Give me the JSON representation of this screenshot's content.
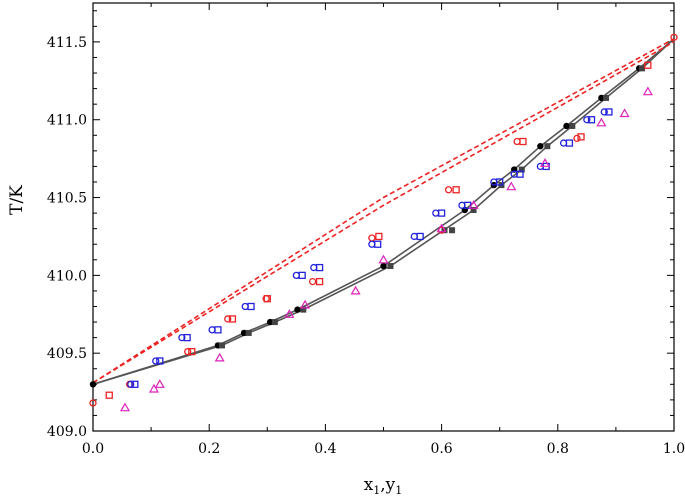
{
  "chart_data": {
    "type": "scatter",
    "xlabel": "x",
    "xlabel_sub1": "1",
    "xlabel_sep": ",y",
    "xlabel_sub2": "1",
    "ylabel": "T/K",
    "xlim": [
      0.0,
      1.0
    ],
    "ylim": [
      409.0,
      411.75
    ],
    "xticks": [
      "0.0",
      "0.2",
      "0.4",
      "0.6",
      "0.8",
      "1.0"
    ],
    "yticks": [
      "409.0",
      "409.5",
      "410.0",
      "410.5",
      "411.0",
      "411.5"
    ],
    "grid": false,
    "legend": "none",
    "series": [
      {
        "kind": "line",
        "color": "#555555",
        "dash": "",
        "x": [
          0.0,
          0.215,
          0.26,
          0.305,
          0.352,
          0.5,
          0.64,
          0.69,
          0.725,
          0.77,
          0.815,
          0.875,
          0.94,
          1.0
        ],
        "y": [
          409.3,
          409.55,
          409.63,
          409.7,
          409.78,
          410.06,
          410.42,
          410.58,
          410.68,
          410.83,
          410.96,
          411.14,
          411.33,
          411.52
        ]
      },
      {
        "kind": "line",
        "color": "#555555",
        "dash": "",
        "x": [
          0.0,
          0.222,
          0.268,
          0.313,
          0.362,
          0.512,
          0.655,
          0.703,
          0.738,
          0.782,
          0.825,
          0.883,
          0.945,
          1.0
        ],
        "y": [
          409.3,
          409.55,
          409.63,
          409.7,
          409.78,
          410.06,
          410.42,
          410.58,
          410.68,
          410.83,
          410.96,
          411.14,
          411.33,
          411.52
        ]
      },
      {
        "kind": "line",
        "color": "#ee2222",
        "dash": "5,3",
        "x": [
          0.0,
          0.5,
          1.0
        ],
        "y": [
          409.31,
          410.5,
          411.52
        ]
      },
      {
        "kind": "line",
        "color": "#ee2222",
        "dash": "5,3",
        "x": [
          0.0,
          0.5,
          1.0
        ],
        "y": [
          409.31,
          410.45,
          411.5
        ]
      },
      {
        "kind": "marker",
        "shape": "dot",
        "color": "#000000",
        "x": [
          0.0,
          0.215,
          0.26,
          0.305,
          0.352,
          0.5,
          0.64,
          0.69,
          0.725,
          0.77,
          0.815,
          0.875,
          0.94
        ],
        "y": [
          409.3,
          409.55,
          409.63,
          409.7,
          409.78,
          410.06,
          410.42,
          410.58,
          410.68,
          410.83,
          410.96,
          411.14,
          411.33
        ]
      },
      {
        "kind": "marker",
        "shape": "square-filled",
        "color": "#444444",
        "x": [
          0.222,
          0.268,
          0.313,
          0.362,
          0.512,
          0.605,
          0.618,
          0.655,
          0.703,
          0.738,
          0.782,
          0.825,
          0.883,
          0.945
        ],
        "y": [
          409.55,
          409.63,
          409.7,
          409.78,
          410.06,
          410.29,
          410.29,
          410.42,
          410.58,
          410.68,
          410.83,
          410.96,
          411.14,
          411.33
        ]
      },
      {
        "kind": "marker",
        "shape": "circle-open",
        "color": "#ee2222",
        "x": [
          0.0,
          0.063,
          0.163,
          0.232,
          0.298,
          0.378,
          0.48,
          0.6,
          0.612,
          0.73,
          0.833,
          1.0
        ],
        "y": [
          409.18,
          409.3,
          409.51,
          409.72,
          409.85,
          409.96,
          410.24,
          410.29,
          410.55,
          410.86,
          410.88,
          411.53
        ]
      },
      {
        "kind": "marker",
        "shape": "square-open",
        "color": "#ee2222",
        "x": [
          0.028,
          0.17,
          0.24,
          0.3,
          0.39,
          0.492,
          0.625,
          0.74,
          0.84,
          0.955
        ],
        "y": [
          409.23,
          409.51,
          409.72,
          409.85,
          409.96,
          410.25,
          410.55,
          410.86,
          410.89,
          411.35
        ]
      },
      {
        "kind": "marker",
        "shape": "circle-open",
        "color": "#2222dd",
        "x": [
          0.065,
          0.108,
          0.153,
          0.205,
          0.262,
          0.35,
          0.38,
          0.48,
          0.553,
          0.59,
          0.635,
          0.69,
          0.725,
          0.77,
          0.81,
          0.85,
          0.88
        ],
        "y": [
          409.3,
          409.45,
          409.6,
          409.65,
          409.8,
          410.0,
          410.05,
          410.2,
          410.25,
          410.4,
          410.45,
          410.6,
          410.65,
          410.7,
          410.85,
          411.0,
          411.05
        ]
      },
      {
        "kind": "marker",
        "shape": "square-open",
        "color": "#2222dd",
        "x": [
          0.072,
          0.115,
          0.162,
          0.215,
          0.272,
          0.36,
          0.39,
          0.49,
          0.563,
          0.6,
          0.645,
          0.7,
          0.735,
          0.78,
          0.82,
          0.858,
          0.888
        ],
        "y": [
          409.3,
          409.45,
          409.6,
          409.65,
          409.8,
          410.0,
          410.05,
          410.2,
          410.25,
          410.4,
          410.45,
          410.6,
          410.65,
          410.7,
          410.85,
          411.0,
          411.05
        ]
      },
      {
        "kind": "marker",
        "shape": "triangle-open",
        "color": "#dd22bb",
        "x": [
          0.055,
          0.105,
          0.115,
          0.218,
          0.338,
          0.365,
          0.452,
          0.5,
          0.6,
          0.655,
          0.72,
          0.778,
          0.875,
          0.915,
          0.955
        ],
        "y": [
          409.15,
          409.27,
          409.3,
          409.47,
          409.75,
          409.81,
          409.9,
          410.1,
          410.3,
          410.45,
          410.57,
          410.72,
          410.98,
          411.04,
          411.18
        ]
      }
    ]
  }
}
